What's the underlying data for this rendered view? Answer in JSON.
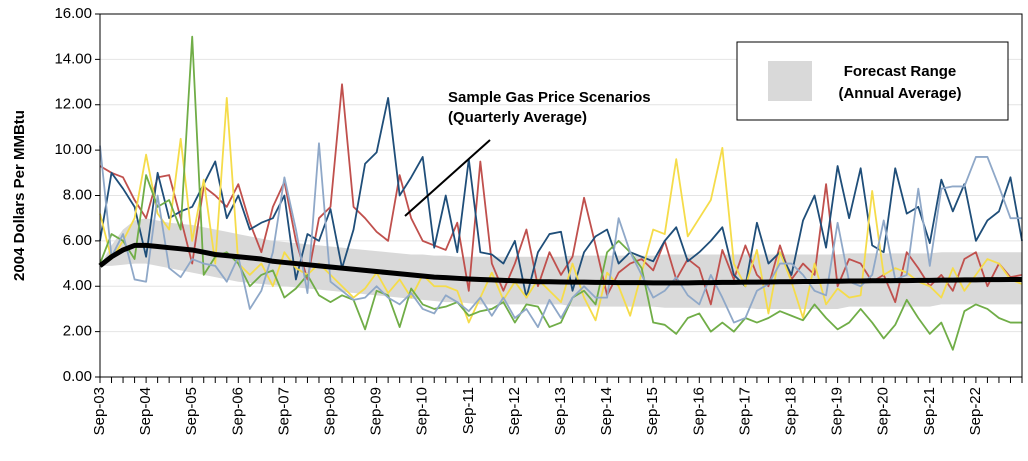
{
  "chart_data": {
    "type": "line",
    "y_label": "2004 Dollars Per MMBtu",
    "categories": [
      "Sep-03",
      null,
      null,
      null,
      "Sep-04",
      null,
      null,
      null,
      "Sep-05",
      null,
      null,
      null,
      "Sep-06",
      null,
      null,
      null,
      "Sep-07",
      null,
      null,
      null,
      "Sep-08",
      null,
      null,
      null,
      "Sep-09",
      null,
      null,
      null,
      "Sep-10",
      null,
      null,
      null,
      "Sep-11",
      null,
      null,
      null,
      "Sep-12",
      null,
      null,
      null,
      "Sep-13",
      null,
      null,
      null,
      "Sep-14",
      null,
      null,
      null,
      "Sep-15",
      null,
      null,
      null,
      "Sep-16",
      null,
      null,
      null,
      "Sep-17",
      null,
      null,
      null,
      "Sep-18",
      null,
      null,
      null,
      "Sep-19",
      null,
      null,
      null,
      "Sep-20",
      null,
      null,
      null,
      "Sep-21",
      null,
      null,
      null,
      "Sep-22",
      null,
      null,
      null,
      null
    ],
    "ylim": [
      0,
      16
    ],
    "yticks": [
      {
        "value": 0,
        "label": "0.00"
      },
      {
        "value": 2,
        "label": "2.00"
      },
      {
        "value": 4,
        "label": "4.00"
      },
      {
        "value": 6,
        "label": "6.00"
      },
      {
        "value": 8,
        "label": "8.00"
      },
      {
        "value": 10,
        "label": "10.00"
      },
      {
        "value": 12,
        "label": "12.00"
      },
      {
        "value": 14,
        "label": "14.00"
      },
      {
        "value": 16,
        "label": "16.00"
      }
    ],
    "grid": true,
    "band": {
      "name": [
        "Forecast Range",
        "(Annual Average)"
      ],
      "color": "#d9d9d9",
      "upper": [
        4.9,
        5.8,
        6.5,
        6.9,
        7.0,
        6.9,
        6.8,
        6.75,
        6.7,
        6.6,
        6.5,
        6.4,
        6.3,
        6.2,
        6.1,
        6.0,
        5.95,
        5.9,
        5.85,
        5.8,
        5.75,
        5.7,
        5.65,
        5.6,
        5.55,
        5.5,
        5.45,
        5.4,
        5.4,
        5.35,
        5.35,
        5.3,
        5.3,
        5.3,
        5.3,
        5.3,
        5.3,
        5.3,
        5.3,
        5.3,
        5.3,
        5.35,
        5.35,
        5.35,
        5.35,
        5.35,
        5.35,
        5.35,
        5.35,
        5.4,
        5.4,
        5.4,
        5.4,
        5.4,
        5.4,
        5.4,
        5.4,
        5.4,
        5.4,
        5.4,
        5.4,
        5.4,
        5.4,
        5.4,
        5.4,
        5.45,
        5.45,
        5.45,
        5.45,
        5.45,
        5.45,
        5.45,
        5.45,
        5.5,
        5.5,
        5.5,
        5.5,
        5.5,
        5.5,
        5.5,
        5.5
      ],
      "lower": [
        4.9,
        4.9,
        4.95,
        5.0,
        5.0,
        4.9,
        4.8,
        4.7,
        4.6,
        4.5,
        4.4,
        4.3,
        4.2,
        4.15,
        4.1,
        4.05,
        4.0,
        3.95,
        3.9,
        3.85,
        3.8,
        3.75,
        3.7,
        3.65,
        3.6,
        3.55,
        3.5,
        3.45,
        3.4,
        3.35,
        3.3,
        3.3,
        3.25,
        3.2,
        3.2,
        3.2,
        3.2,
        3.2,
        3.2,
        3.2,
        3.2,
        3.1,
        3.1,
        3.1,
        3.1,
        3.1,
        3.1,
        3.1,
        3.1,
        3.05,
        3.05,
        3.05,
        3.05,
        3.05,
        3.05,
        3.05,
        3.05,
        3.0,
        3.0,
        3.0,
        3.0,
        3.0,
        3.0,
        3.0,
        3.0,
        3.1,
        3.1,
        3.1,
        3.1,
        3.1,
        3.1,
        3.1,
        3.1,
        3.2,
        3.2,
        3.2,
        3.2,
        3.2,
        3.2,
        3.2,
        3.2
      ]
    },
    "annotation": {
      "text": [
        "Sample Gas Price Scenarios",
        "(Quarterly Average)"
      ]
    },
    "series": [
      {
        "color": "#c0504d",
        "values": [
          9.3,
          9.0,
          8.8,
          7.8,
          7.0,
          8.8,
          8.9,
          7.0,
          5.0,
          8.4,
          8.0,
          7.5,
          8.5,
          6.8,
          5.5,
          7.5,
          8.6,
          6.0,
          4.3,
          7.0,
          7.5,
          12.9,
          7.5,
          7.0,
          6.4,
          6.0,
          8.9,
          7.0,
          6.0,
          5.8,
          5.6,
          6.8,
          3.8,
          9.5,
          5.0,
          3.8,
          5.0,
          6.5,
          4.0,
          5.5,
          4.5,
          5.3,
          7.9,
          5.8,
          3.6,
          4.6,
          5.0,
          5.2,
          4.7,
          6.0,
          4.3,
          5.2,
          4.8,
          3.2,
          5.6,
          4.3,
          5.8,
          4.5,
          4.0,
          5.8,
          4.3,
          5.0,
          4.5,
          8.5,
          4.0,
          5.2,
          5.0,
          4.2,
          4.5,
          3.3,
          5.5,
          4.8,
          4.0,
          4.5,
          3.8,
          5.2,
          5.5,
          4.0,
          5.0,
          4.4,
          4.5
        ]
      },
      {
        "color": "#1f4e79",
        "values": [
          6.0,
          9.0,
          8.3,
          7.5,
          5.3,
          9.0,
          7.0,
          7.3,
          7.5,
          8.5,
          9.5,
          7.0,
          8.0,
          6.5,
          6.8,
          7.0,
          8.0,
          4.3,
          6.3,
          6.0,
          7.4,
          4.8,
          6.5,
          9.4,
          9.9,
          12.3,
          8.0,
          8.8,
          9.7,
          5.7,
          8.0,
          5.5,
          9.6,
          5.5,
          5.4,
          5.0,
          6.0,
          3.5,
          5.5,
          6.3,
          6.4,
          3.8,
          5.5,
          6.2,
          6.5,
          5.0,
          5.5,
          5.3,
          5.1,
          6.0,
          6.6,
          5.1,
          5.5,
          6.0,
          6.6,
          4.5,
          4.0,
          6.8,
          5.0,
          5.5,
          4.5,
          6.9,
          8.0,
          5.7,
          9.3,
          7.0,
          9.2,
          5.8,
          5.5,
          9.2,
          7.2,
          7.5,
          5.9,
          8.7,
          7.3,
          8.5,
          6.0,
          6.9,
          7.3,
          8.8,
          6.0
        ]
      },
      {
        "color": "#f5dc4a",
        "values": [
          7.2,
          5.2,
          6.0,
          7.0,
          9.8,
          7.2,
          6.5,
          10.5,
          6.0,
          8.7,
          5.0,
          12.3,
          5.0,
          4.5,
          5.0,
          4.0,
          5.5,
          4.8,
          4.5,
          5.0,
          4.5,
          4.0,
          3.5,
          3.9,
          4.6,
          3.7,
          4.3,
          3.5,
          4.5,
          4.0,
          4.0,
          3.8,
          2.4,
          3.5,
          4.6,
          3.4,
          4.2,
          3.5,
          4.3,
          3.8,
          3.3,
          5.0,
          3.5,
          2.5,
          4.6,
          4.0,
          2.7,
          4.6,
          6.5,
          6.3,
          9.6,
          6.2,
          7.0,
          7.8,
          10.1,
          5.0,
          4.0,
          5.6,
          2.8,
          5.5,
          4.2,
          2.6,
          5.0,
          3.2,
          3.9,
          3.5,
          3.6,
          8.2,
          4.5,
          4.8,
          4.6,
          4.2,
          4.0,
          3.5,
          4.8,
          3.8,
          4.5,
          5.2,
          5.0,
          4.3,
          4.1
        ]
      },
      {
        "color": "#70ad47",
        "values": [
          5.0,
          6.3,
          6.0,
          5.2,
          8.9,
          7.5,
          7.8,
          6.5,
          15.0,
          4.5,
          5.3,
          5.5,
          5.0,
          4.0,
          4.5,
          4.7,
          3.5,
          3.9,
          4.5,
          3.6,
          3.3,
          3.6,
          3.4,
          2.1,
          3.8,
          3.6,
          2.2,
          3.9,
          3.2,
          3.0,
          3.1,
          3.3,
          2.7,
          2.9,
          3.0,
          3.3,
          2.4,
          3.2,
          3.1,
          2.2,
          2.4,
          3.5,
          3.8,
          3.2,
          5.5,
          6.0,
          5.5,
          4.8,
          2.4,
          2.3,
          1.9,
          2.6,
          2.8,
          2.0,
          2.4,
          2.0,
          2.6,
          2.4,
          2.6,
          2.9,
          2.7,
          2.5,
          3.2,
          2.6,
          2.1,
          2.4,
          3.0,
          2.4,
          1.7,
          2.3,
          3.4,
          2.6,
          1.9,
          2.4,
          1.2,
          2.9,
          3.2,
          3.0,
          2.6,
          2.4,
          2.4
        ]
      },
      {
        "color": "#8fa8c8",
        "values": [
          10.2,
          5.3,
          6.3,
          4.3,
          4.2,
          8.0,
          4.8,
          4.4,
          5.2,
          5.0,
          4.9,
          4.2,
          5.3,
          3.0,
          3.8,
          5.5,
          8.8,
          6.5,
          3.7,
          10.3,
          4.2,
          3.8,
          3.4,
          3.5,
          4.0,
          3.5,
          3.2,
          3.7,
          3.0,
          2.8,
          3.6,
          3.3,
          2.9,
          3.5,
          2.7,
          3.5,
          2.6,
          3.0,
          2.2,
          3.4,
          2.6,
          3.5,
          4.0,
          3.5,
          3.5,
          7.0,
          5.5,
          4.5,
          3.5,
          3.8,
          4.4,
          3.6,
          3.2,
          4.5,
          3.5,
          2.4,
          2.6,
          3.8,
          4.1,
          5.0,
          5.0,
          4.5,
          3.8,
          3.6,
          6.8,
          4.2,
          4.0,
          4.5,
          6.9,
          4.3,
          4.5,
          8.3,
          4.9,
          8.3,
          8.4,
          8.4,
          9.7,
          9.7,
          8.4,
          7.0,
          7.0
        ]
      },
      {
        "color": "#000000",
        "width": 5,
        "values": [
          4.9,
          5.3,
          5.6,
          5.8,
          5.8,
          5.75,
          5.7,
          5.65,
          5.6,
          5.5,
          5.4,
          5.35,
          5.3,
          5.25,
          5.2,
          5.1,
          5.05,
          5.0,
          4.95,
          4.9,
          4.85,
          4.8,
          4.75,
          4.7,
          4.65,
          4.6,
          4.55,
          4.5,
          4.45,
          4.4,
          4.38,
          4.35,
          4.32,
          4.3,
          4.28,
          4.26,
          4.24,
          4.22,
          4.2,
          4.2,
          4.19,
          4.18,
          4.18,
          4.17,
          4.17,
          4.16,
          4.16,
          4.16,
          4.15,
          4.15,
          4.15,
          4.15,
          4.16,
          4.16,
          4.17,
          4.17,
          4.18,
          4.18,
          4.19,
          4.2,
          4.2,
          4.21,
          4.21,
          4.22,
          4.22,
          4.23,
          4.23,
          4.24,
          4.24,
          4.25,
          4.25,
          4.26,
          4.26,
          4.27,
          4.27,
          4.28,
          4.28,
          4.29,
          4.29,
          4.3,
          4.3
        ]
      }
    ]
  }
}
